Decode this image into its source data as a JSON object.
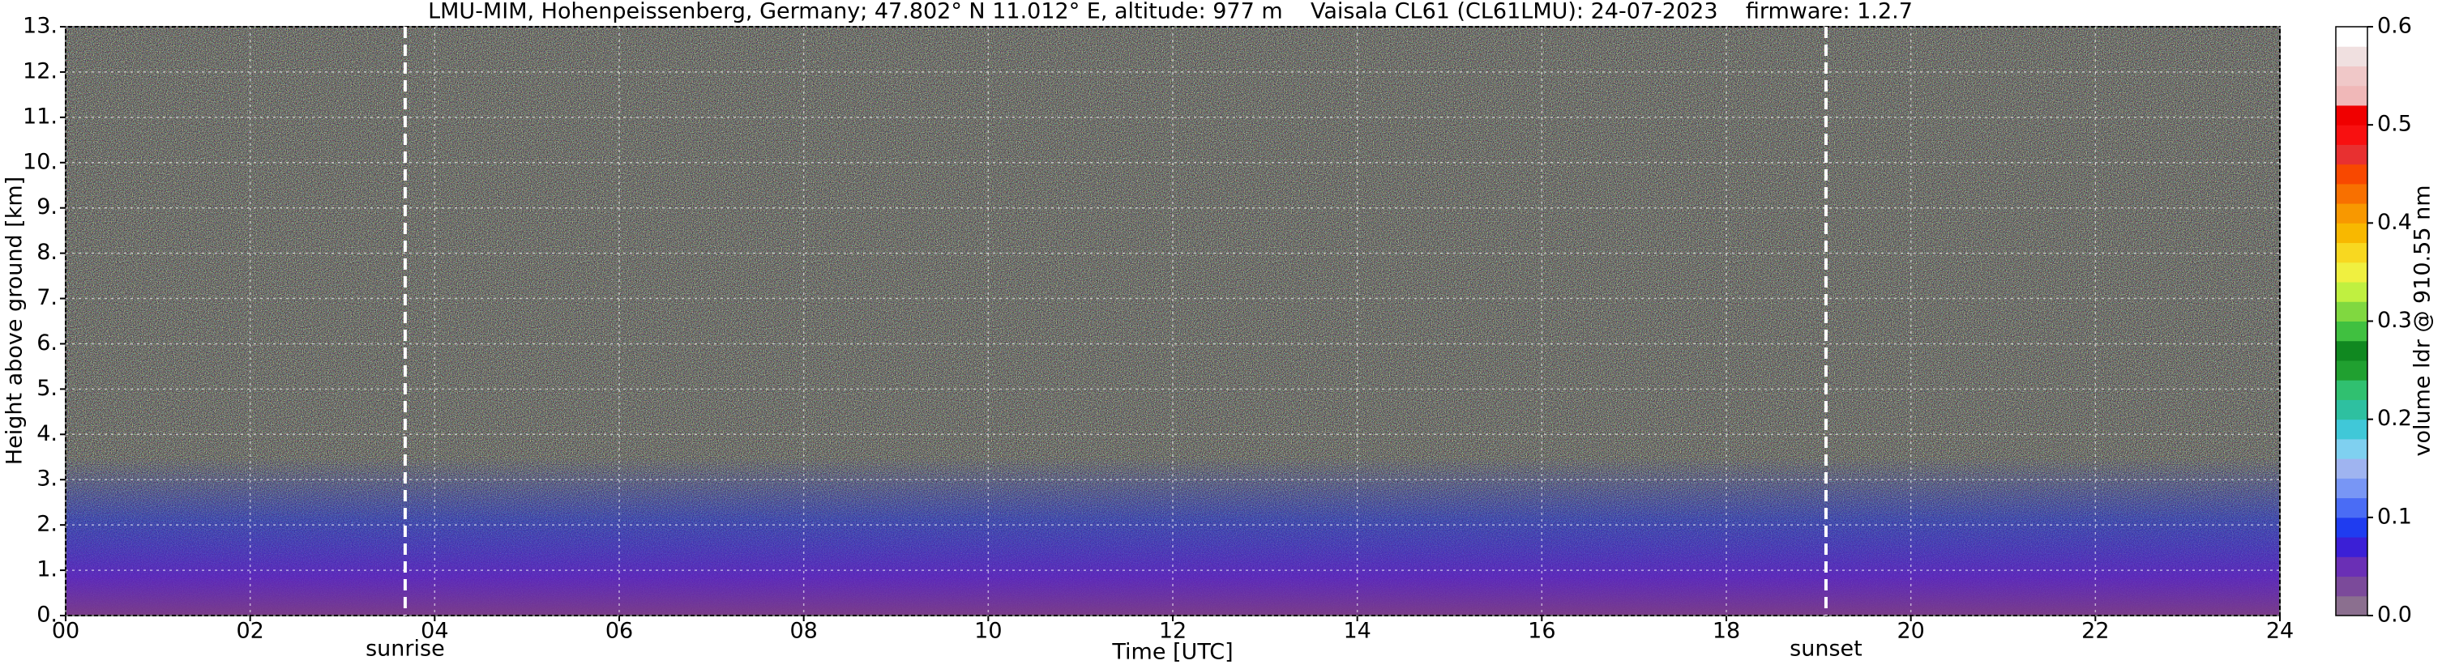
{
  "chart_data": {
    "type": "heatmap",
    "title": "LMU-MIM, Hohenpeissenberg, Germany; 47.802° N 11.012° E, altitude: 977 m    Vaisala CL61 (CL61LMU): 24-07-2023    firmware: 1.2.7",
    "x_label": "Time [UTC]",
    "y_label": "Height above ground [km]",
    "xlim": [
      0,
      24
    ],
    "xticks": [
      {
        "value": 0,
        "label": "00"
      },
      {
        "value": 2,
        "label": "02"
      },
      {
        "value": 4,
        "label": "04"
      },
      {
        "value": 6,
        "label": "06"
      },
      {
        "value": 8,
        "label": "08"
      },
      10,
      12,
      14,
      16,
      18,
      20,
      22,
      24
    ],
    "ylim": [
      0,
      13
    ],
    "yticks": [
      {
        "value": 0,
        "label": "0."
      },
      {
        "value": 1,
        "label": "1."
      },
      {
        "value": 2,
        "label": "2."
      },
      {
        "value": 3,
        "label": "3."
      },
      {
        "value": 4,
        "label": "4."
      },
      {
        "value": 5,
        "label": "5."
      },
      {
        "value": 6,
        "label": "6."
      },
      {
        "value": 7,
        "label": "7."
      },
      {
        "value": 8,
        "label": "8."
      },
      {
        "value": 9,
        "label": "9."
      },
      {
        "value": 10,
        "label": "10."
      },
      {
        "value": 11,
        "label": "11."
      },
      {
        "value": 12,
        "label": "12."
      },
      {
        "value": 13,
        "label": "13."
      }
    ],
    "grid": true,
    "annotations": [
      {
        "text": "sunrise",
        "x": 3.68
      },
      {
        "text": "sunset",
        "x": 19.08
      }
    ],
    "colorbar": {
      "label": "volume ldr @ 910.55 nm",
      "lim": [
        0,
        0.6
      ],
      "ticks": [
        {
          "value": 0,
          "label": "0.0"
        },
        0.1,
        0.2,
        0.3,
        0.4,
        0.5,
        0.6
      ],
      "colors": [
        "#8b6f8f",
        "#7b4a9a",
        "#6a2fb5",
        "#3b1fd6",
        "#1f3cf0",
        "#4a6cf5",
        "#7896f5",
        "#9fb4f0",
        "#7fd0f0",
        "#40c8d8",
        "#2ec0a0",
        "#30c070",
        "#20a030",
        "#108820",
        "#40c040",
        "#80d840",
        "#c0f040",
        "#f0f040",
        "#f8d820",
        "#f8b800",
        "#f89800",
        "#f87000",
        "#f84800",
        "#e83030",
        "#f81010",
        "#f00000",
        "#f0b8b8",
        "#f0c8c8",
        "#f0e0e0",
        "#ffffff"
      ]
    }
  }
}
